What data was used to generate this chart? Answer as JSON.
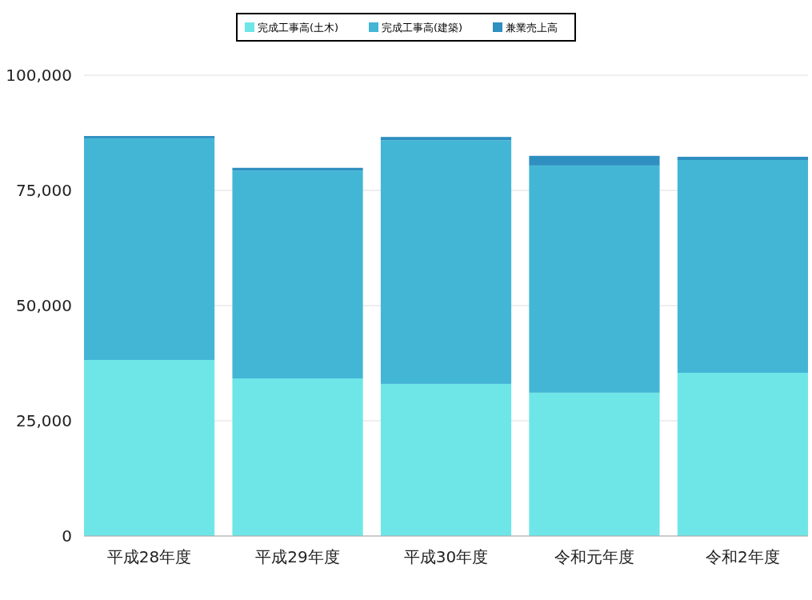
{
  "chart_data": {
    "type": "bar",
    "stacked": true,
    "categories": [
      "平成28年度",
      "平成29年度",
      "平成30年度",
      "令和元年度",
      "令和2年度"
    ],
    "series": [
      {
        "name": "完成工事高(土木)",
        "color": "#6ee6e8",
        "values": [
          38200,
          34200,
          33000,
          31100,
          35400
        ]
      },
      {
        "name": "完成工事高(建築)",
        "color": "#43b6d6",
        "values": [
          48100,
          45100,
          52900,
          49300,
          46200
        ]
      },
      {
        "name": "兼業売上高",
        "color": "#2e8fc0",
        "values": [
          500,
          600,
          700,
          2100,
          700
        ]
      }
    ],
    "ylim": [
      0,
      100000
    ],
    "yticks": [
      {
        "value": 0,
        "label": "0"
      },
      {
        "value": 25000,
        "label": "25,000"
      },
      {
        "value": 50000,
        "label": "50,000"
      },
      {
        "value": 75000,
        "label": "75,000"
      },
      {
        "value": 100000,
        "label": "100,000"
      }
    ],
    "grid": "y",
    "legend": "top"
  }
}
